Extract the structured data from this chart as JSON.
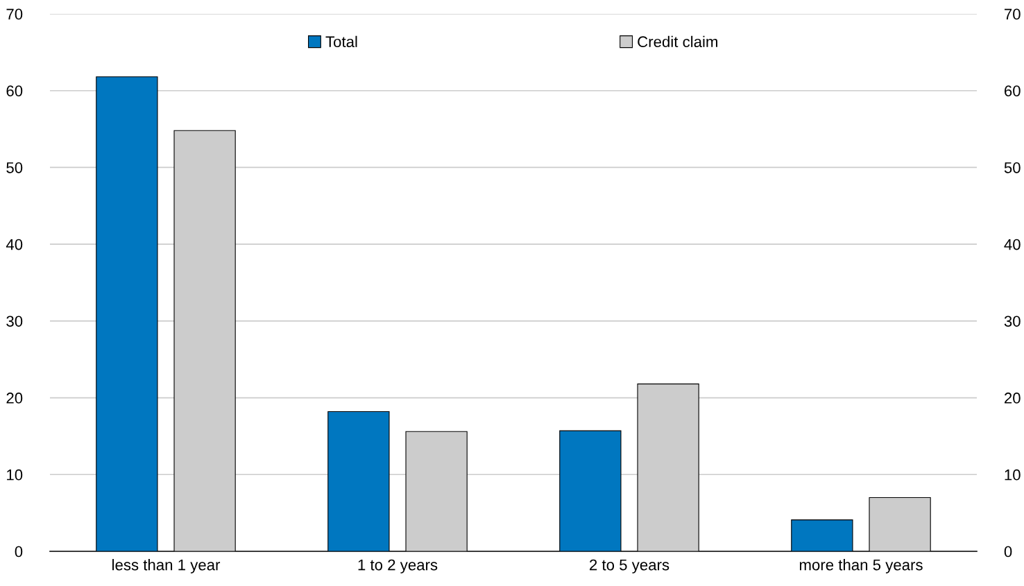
{
  "chart_data": {
    "type": "bar",
    "categories": [
      "less than 1 year",
      "1 to 2 years",
      "2 to 5 years",
      "more than 5 years"
    ],
    "series": [
      {
        "name": "Total",
        "color": "#0077c0",
        "values": [
          61.8,
          18.2,
          15.7,
          4.1
        ]
      },
      {
        "name": "Credit claim",
        "color": "#cccccc",
        "values": [
          54.8,
          15.6,
          21.8,
          7.0
        ]
      }
    ],
    "ylim": [
      0,
      70
    ],
    "yticks": [
      0,
      10,
      20,
      30,
      40,
      50,
      60,
      70
    ],
    "y2lim": [
      0,
      70
    ],
    "y2ticks": [
      0,
      10,
      20,
      30,
      40,
      50,
      60,
      70
    ],
    "grid": "y",
    "legend": "top"
  }
}
